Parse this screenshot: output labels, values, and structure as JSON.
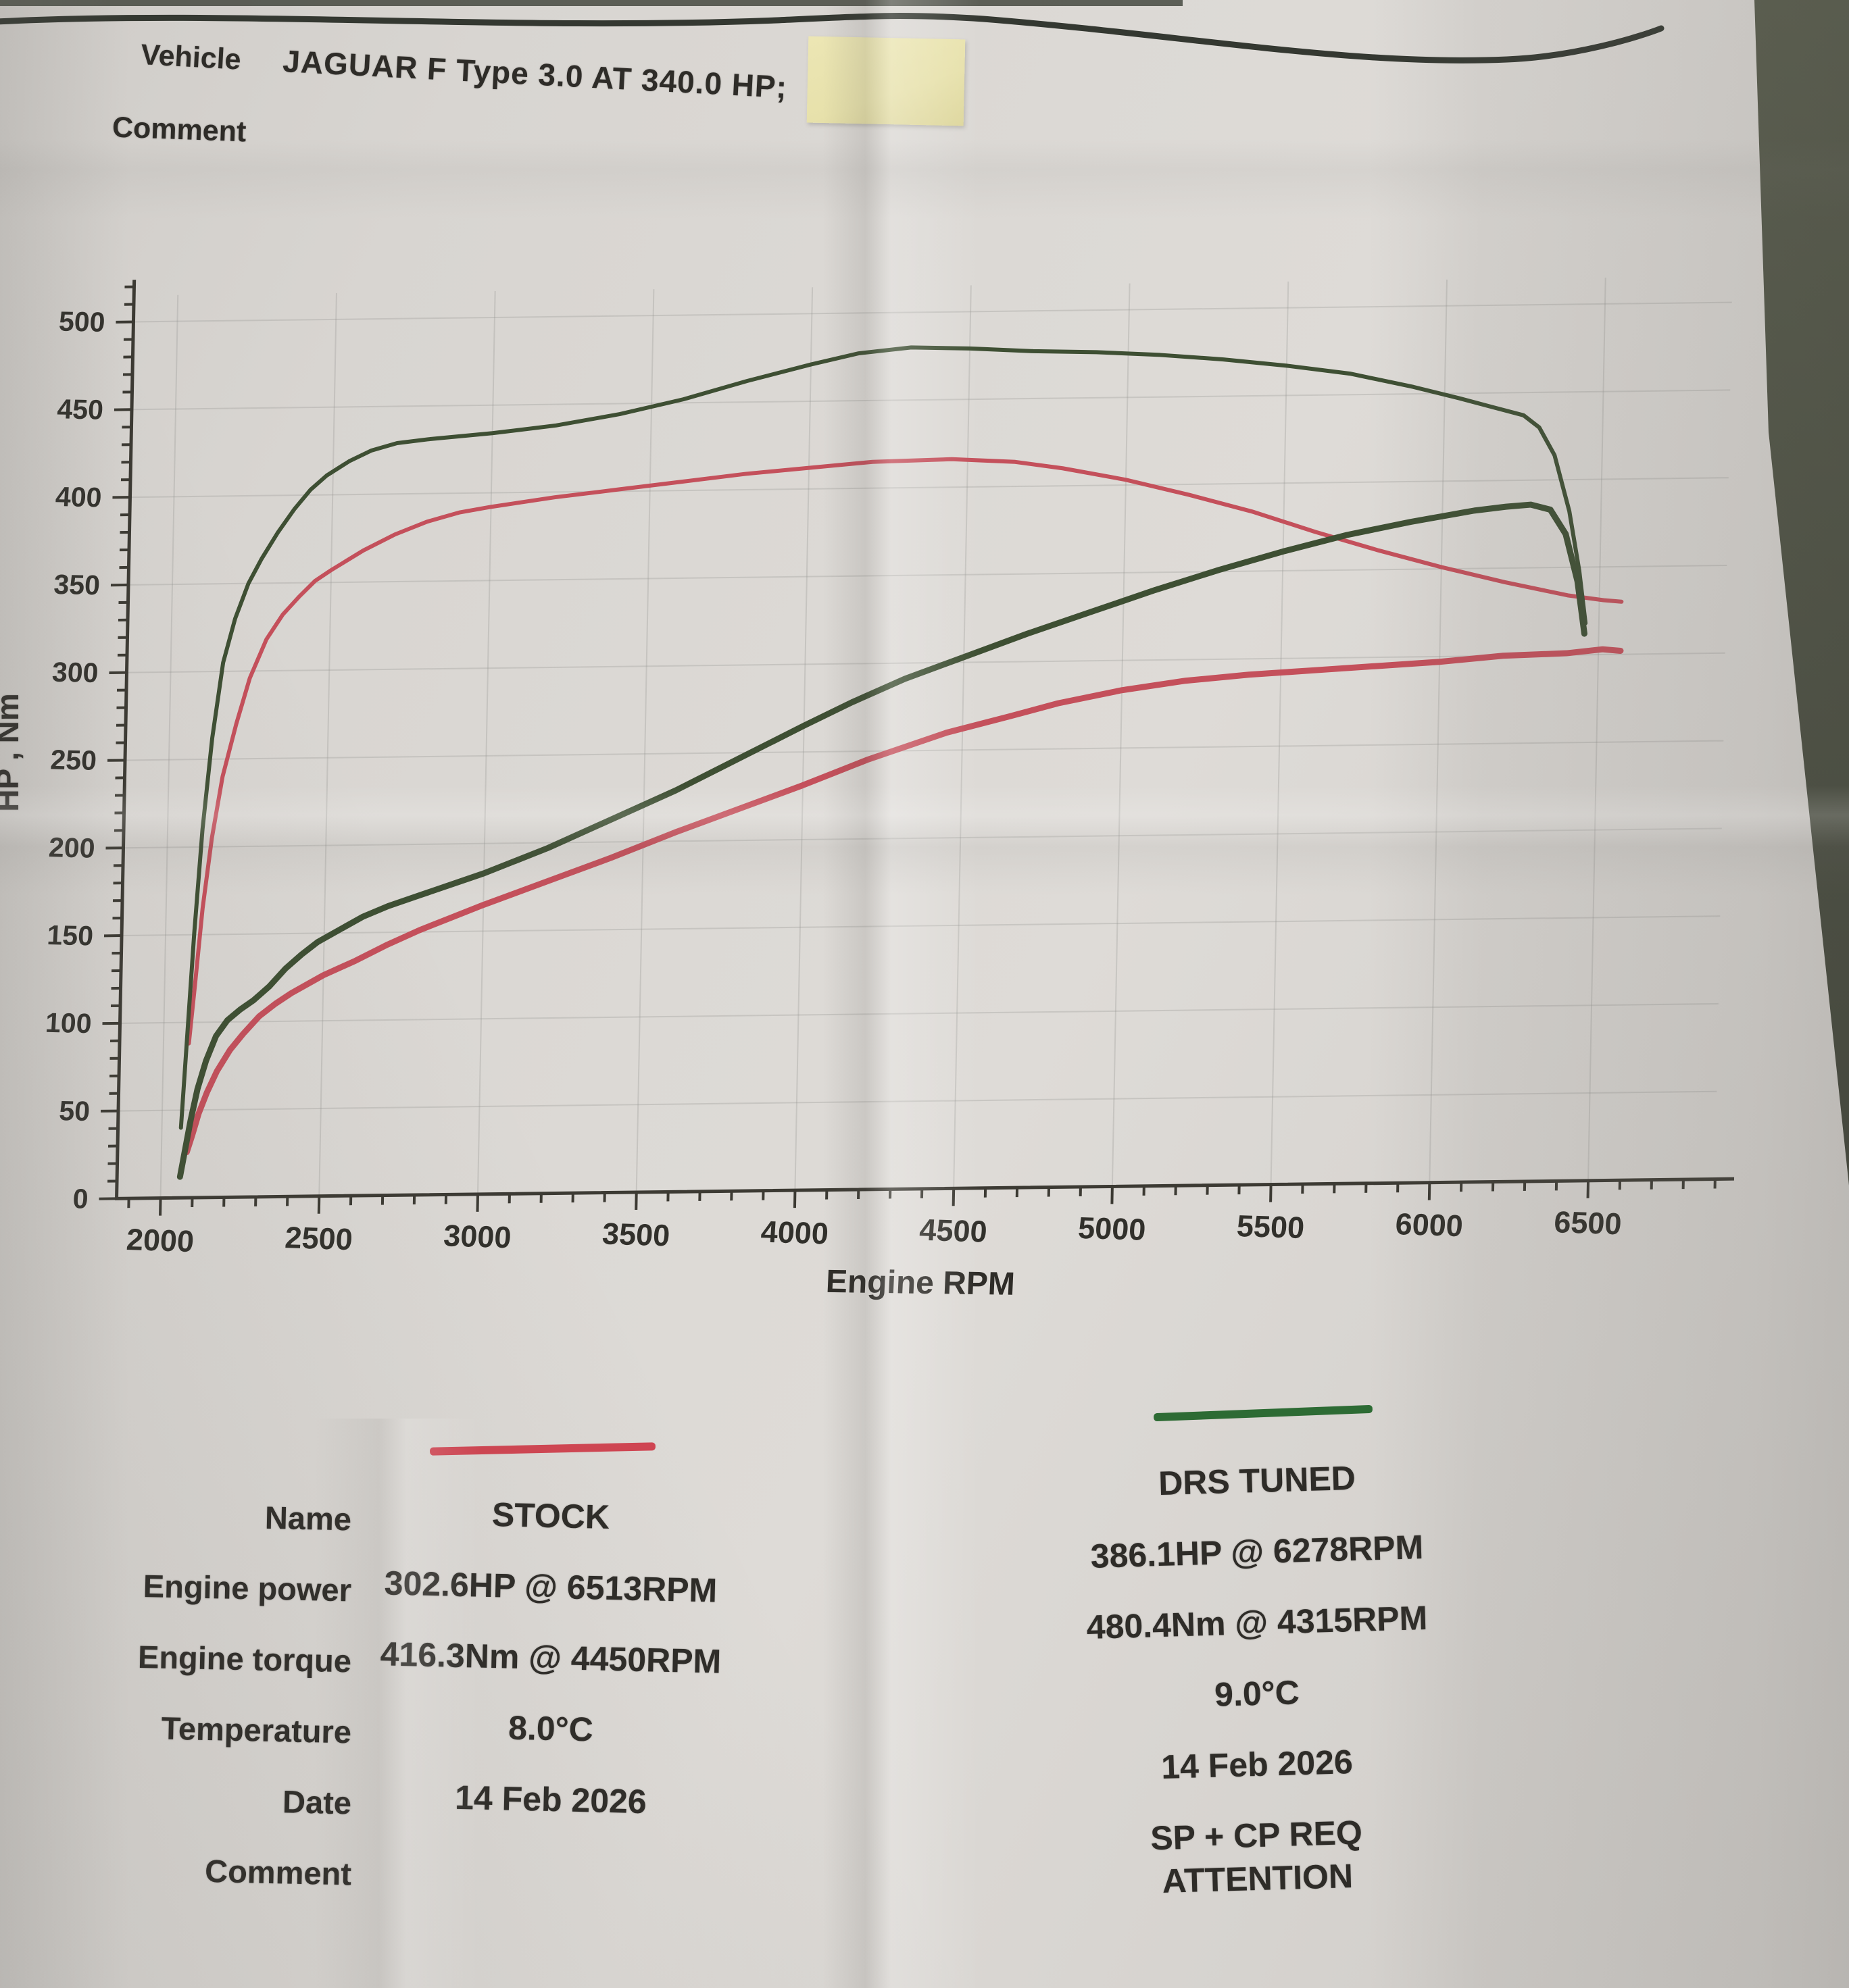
{
  "header": {
    "vehicle_label": "Vehicle",
    "vehicle_value": "JAGUAR F Type 3.0 AT 340.0 HP;",
    "comment_label": "Comment",
    "sticky_note": ""
  },
  "chart_data": {
    "type": "line",
    "title": "",
    "xlabel": "Engine RPM",
    "ylabel": "HP , Nm",
    "xlim": [
      1800,
      7000
    ],
    "ylim": [
      0,
      520
    ],
    "grid": true,
    "legend_position": "below",
    "x_ticks": [
      2000,
      2500,
      3000,
      3500,
      4000,
      4500,
      5000,
      5500,
      6000,
      6500
    ],
    "y_ticks": [
      0,
      50,
      100,
      150,
      200,
      250,
      300,
      350,
      400,
      450,
      500
    ],
    "series": [
      {
        "name": "STOCK engine torque",
        "unit": "Nm",
        "color": "#c4505b",
        "width": 6,
        "points": [
          [
            2080,
            88
          ],
          [
            2095,
            120
          ],
          [
            2115,
            165
          ],
          [
            2140,
            205
          ],
          [
            2170,
            240
          ],
          [
            2210,
            270
          ],
          [
            2250,
            296
          ],
          [
            2300,
            318
          ],
          [
            2350,
            332
          ],
          [
            2400,
            342
          ],
          [
            2450,
            351
          ],
          [
            2500,
            357
          ],
          [
            2600,
            368
          ],
          [
            2700,
            377
          ],
          [
            2800,
            384
          ],
          [
            2900,
            389
          ],
          [
            3000,
            392
          ],
          [
            3200,
            397
          ],
          [
            3400,
            401
          ],
          [
            3600,
            405
          ],
          [
            3800,
            409
          ],
          [
            4000,
            412
          ],
          [
            4200,
            415
          ],
          [
            4450,
            416
          ],
          [
            4650,
            414
          ],
          [
            4800,
            410
          ],
          [
            5000,
            403
          ],
          [
            5200,
            394
          ],
          [
            5400,
            384
          ],
          [
            5600,
            372
          ],
          [
            5800,
            361
          ],
          [
            6000,
            351
          ],
          [
            6200,
            342
          ],
          [
            6400,
            334
          ],
          [
            6513,
            331
          ],
          [
            6570,
            330
          ]
        ]
      },
      {
        "name": "DRS TUNED engine torque",
        "unit": "Nm",
        "color": "#3e4f33",
        "width": 6,
        "points": [
          [
            2060,
            40
          ],
          [
            2075,
            95
          ],
          [
            2090,
            150
          ],
          [
            2110,
            210
          ],
          [
            2135,
            262
          ],
          [
            2165,
            305
          ],
          [
            2200,
            330
          ],
          [
            2240,
            350
          ],
          [
            2280,
            364
          ],
          [
            2330,
            379
          ],
          [
            2380,
            392
          ],
          [
            2430,
            403
          ],
          [
            2480,
            411
          ],
          [
            2550,
            419
          ],
          [
            2620,
            425
          ],
          [
            2700,
            429
          ],
          [
            2800,
            431
          ],
          [
            3000,
            434
          ],
          [
            3200,
            438
          ],
          [
            3400,
            444
          ],
          [
            3600,
            452
          ],
          [
            3800,
            462
          ],
          [
            4000,
            471
          ],
          [
            4150,
            477
          ],
          [
            4315,
            480
          ],
          [
            4500,
            479
          ],
          [
            4700,
            477
          ],
          [
            4900,
            476
          ],
          [
            5100,
            474
          ],
          [
            5300,
            471
          ],
          [
            5500,
            467
          ],
          [
            5700,
            462
          ],
          [
            5900,
            454
          ],
          [
            6050,
            447
          ],
          [
            6150,
            442
          ],
          [
            6250,
            437
          ],
          [
            6300,
            430
          ],
          [
            6350,
            414
          ],
          [
            6400,
            382
          ],
          [
            6435,
            348
          ],
          [
            6458,
            318
          ]
        ]
      },
      {
        "name": "STOCK engine power",
        "unit": "HP",
        "color": "#c4505b",
        "width": 9,
        "points": [
          [
            2080,
            26
          ],
          [
            2095,
            35
          ],
          [
            2115,
            48
          ],
          [
            2140,
            60
          ],
          [
            2170,
            72
          ],
          [
            2210,
            84
          ],
          [
            2250,
            93
          ],
          [
            2300,
            103
          ],
          [
            2350,
            110
          ],
          [
            2400,
            116
          ],
          [
            2450,
            121
          ],
          [
            2500,
            126
          ],
          [
            2600,
            134
          ],
          [
            2700,
            143
          ],
          [
            2800,
            151
          ],
          [
            2900,
            158
          ],
          [
            3000,
            165
          ],
          [
            3200,
            178
          ],
          [
            3400,
            191
          ],
          [
            3600,
            205
          ],
          [
            3800,
            218
          ],
          [
            4000,
            231
          ],
          [
            4200,
            245
          ],
          [
            4450,
            260
          ],
          [
            4650,
            269
          ],
          [
            4800,
            276
          ],
          [
            5000,
            283
          ],
          [
            5200,
            288
          ],
          [
            5400,
            291
          ],
          [
            5600,
            293
          ],
          [
            5800,
            295
          ],
          [
            6000,
            297
          ],
          [
            6200,
            300
          ],
          [
            6400,
            301
          ],
          [
            6513,
            303
          ],
          [
            6570,
            302
          ]
        ]
      },
      {
        "name": "DRS TUNED engine power",
        "unit": "HP",
        "color": "#3e4f33",
        "width": 9,
        "points": [
          [
            2060,
            12
          ],
          [
            2075,
            28
          ],
          [
            2090,
            44
          ],
          [
            2110,
            62
          ],
          [
            2135,
            78
          ],
          [
            2165,
            92
          ],
          [
            2200,
            101
          ],
          [
            2240,
            107
          ],
          [
            2280,
            112
          ],
          [
            2330,
            120
          ],
          [
            2380,
            130
          ],
          [
            2430,
            138
          ],
          [
            2480,
            145
          ],
          [
            2550,
            152
          ],
          [
            2620,
            159
          ],
          [
            2700,
            165
          ],
          [
            2800,
            171
          ],
          [
            3000,
            183
          ],
          [
            3200,
            197
          ],
          [
            3400,
            213
          ],
          [
            3600,
            229
          ],
          [
            3800,
            247
          ],
          [
            4000,
            265
          ],
          [
            4150,
            278
          ],
          [
            4315,
            291
          ],
          [
            4500,
            303
          ],
          [
            4700,
            316
          ],
          [
            4900,
            328
          ],
          [
            5100,
            340
          ],
          [
            5300,
            351
          ],
          [
            5500,
            361
          ],
          [
            5700,
            370
          ],
          [
            5900,
            377
          ],
          [
            6000,
            380
          ],
          [
            6100,
            383
          ],
          [
            6200,
            385
          ],
          [
            6278,
            386
          ],
          [
            6340,
            383
          ],
          [
            6390,
            369
          ],
          [
            6430,
            342
          ],
          [
            6455,
            312
          ]
        ]
      }
    ]
  },
  "legend": {
    "stock": {
      "label": "STOCK",
      "color": "#d04552"
    },
    "tuned": {
      "label": "DRS TUNED",
      "color": "#2d6b34"
    }
  },
  "results": {
    "rows": [
      {
        "label": "Name",
        "stock": "STOCK",
        "tuned": "DRS TUNED"
      },
      {
        "label": "Engine power",
        "stock": "302.6HP @ 6513RPM",
        "tuned": "386.1HP @ 6278RPM"
      },
      {
        "label": "Engine torque",
        "stock": "416.3Nm @ 4450RPM",
        "tuned": "480.4Nm @ 4315RPM"
      },
      {
        "label": "Temperature",
        "stock": "8.0°C",
        "tuned": "9.0°C"
      },
      {
        "label": "Date",
        "stock": "14 Feb 2026",
        "tuned": "14 Feb 2026"
      },
      {
        "label": "Comment",
        "stock": "",
        "tuned": "SP +  CP REQ\nATTENTION"
      }
    ]
  }
}
